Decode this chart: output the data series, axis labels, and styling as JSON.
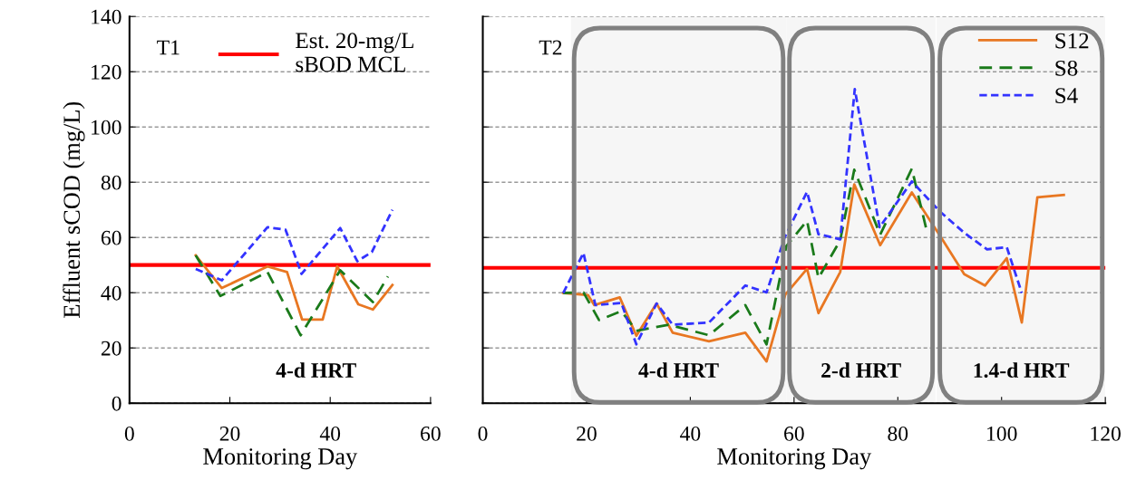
{
  "chart_data": [
    {
      "type": "line",
      "ylabel": "Effluent sCOD (mg/L)",
      "xlabel": "Monitoring Day",
      "xlim": [
        0,
        60
      ],
      "xticks": [
        0,
        20,
        40,
        60
      ],
      "ylim": [
        0,
        140
      ],
      "yticks": [
        0,
        20,
        40,
        60,
        80,
        100,
        120,
        140
      ],
      "grid": "y",
      "legend": "top right",
      "marker": "none",
      "annotations": [
        "T1",
        "4-d HRT"
      ],
      "ref_lines": [
        {
          "axis": "y",
          "value": 50,
          "label": "Est. 20-mg/L\nsBOD MCL",
          "color": "#ff0000",
          "line_style": "solid"
        }
      ],
      "series": [
        {
          "color": "#e87722",
          "line_style": "solid",
          "x": [
            13.2,
            18.4,
            27.5,
            31.4,
            34.4,
            38.5,
            41.4,
            45.6,
            48.5,
            52.4
          ],
          "values": [
            53.5,
            41.7,
            49.5,
            47.5,
            30.3,
            30.3,
            49.5,
            35.8,
            33.9,
            42.8
          ]
        },
        {
          "color": "#1a7a1a",
          "line_style": "dashed",
          "x": [
            13.2,
            18.1,
            27.5,
            34.1,
            42,
            48.5,
            51.5
          ],
          "values": [
            53.5,
            38.8,
            47.5,
            24.6,
            48.1,
            36.6,
            45.9
          ]
        },
        {
          "color": "#3333ff",
          "line_style": "dotted",
          "x": [
            13.2,
            18.4,
            27.5,
            31.1,
            34.3,
            42,
            45.4,
            48.3,
            52.4
          ],
          "values": [
            48.6,
            44.5,
            63.7,
            62.8,
            46.8,
            63.4,
            51.4,
            54.7,
            70
          ]
        }
      ]
    },
    {
      "type": "line",
      "xlabel": "Monitoring Day",
      "xlim": [
        0,
        120
      ],
      "xticks": [
        0,
        20,
        40,
        60,
        80,
        100,
        120
      ],
      "ylim": [
        0,
        140
      ],
      "yticks": [
        0,
        20,
        40,
        60,
        80,
        100,
        120,
        140
      ],
      "tick_labels": "x",
      "grid": "y",
      "legend": "top right",
      "marker": "none",
      "annotations": [
        "T2"
      ],
      "ref_lines": [
        {
          "axis": "y",
          "value": 49,
          "color": "#ff0000",
          "line_style": "solid"
        }
      ],
      "bands": [
        {
          "axis": "x",
          "from": 17,
          "to": 58.5,
          "label": "4-d HRT"
        },
        {
          "axis": "x",
          "from": 58.5,
          "to": 87.3,
          "label": "2-d HRT"
        },
        {
          "axis": "x",
          "from": 87.5,
          "to": 120,
          "label": "1.4-d HRT"
        }
      ],
      "series": [
        {
          "name": "S12",
          "color": "#e87722",
          "line_style": "solid",
          "x": [
            15.5,
            20.3,
            21.5,
            26.4,
            29.6,
            33.5,
            36.6,
            43.6,
            50.6,
            54.7,
            58.3,
            62.5,
            64.7,
            68.9,
            71.6,
            76.6,
            82.7,
            88.1,
            92.8,
            96.8,
            101,
            103.9,
            106.9,
            112
          ],
          "values": [
            39.9,
            39.1,
            35.5,
            38.3,
            24.4,
            36.1,
            25.5,
            22.4,
            25.5,
            15.1,
            39.3,
            48.6,
            32.6,
            47.5,
            79.2,
            57.2,
            76.3,
            60.7,
            46.7,
            42.6,
            52.5,
            29.2,
            74.5,
            75.4
          ]
        },
        {
          "name": "S8",
          "color": "#1a7a1a",
          "line_style": "dashed",
          "x": [
            15.5,
            19.4,
            22.4,
            26.7,
            29.6,
            35.8,
            43.6,
            50.6,
            54.7,
            58.5,
            62.5,
            64.7,
            68.9,
            71.6,
            76.6,
            82.7,
            85.5
          ],
          "values": [
            39.9,
            40.1,
            30.1,
            33.3,
            26.2,
            28.4,
            24.6,
            35.5,
            21.3,
            56.8,
            66.1,
            45.3,
            59,
            84.5,
            61,
            84.9,
            63
          ]
        },
        {
          "name": "S4",
          "color": "#3333ff",
          "line_style": "dotted",
          "x": [
            15.5,
            19.4,
            21.7,
            26.7,
            29.6,
            33.5,
            36.6,
            43.6,
            50.6,
            54.7,
            58.2,
            62.5,
            64.7,
            68.9,
            71.7,
            76.5,
            82.7,
            88.1,
            92.8,
            97.2,
            101,
            103.9
          ],
          "values": [
            39.9,
            54.4,
            35.5,
            36.3,
            21.3,
            36.1,
            28.4,
            29.2,
            42.6,
            40.1,
            60.1,
            76.5,
            61.2,
            59.3,
            113.7,
            63.7,
            80.3,
            69.4,
            61.7,
            55.7,
            56.5,
            39.9
          ]
        }
      ]
    }
  ]
}
